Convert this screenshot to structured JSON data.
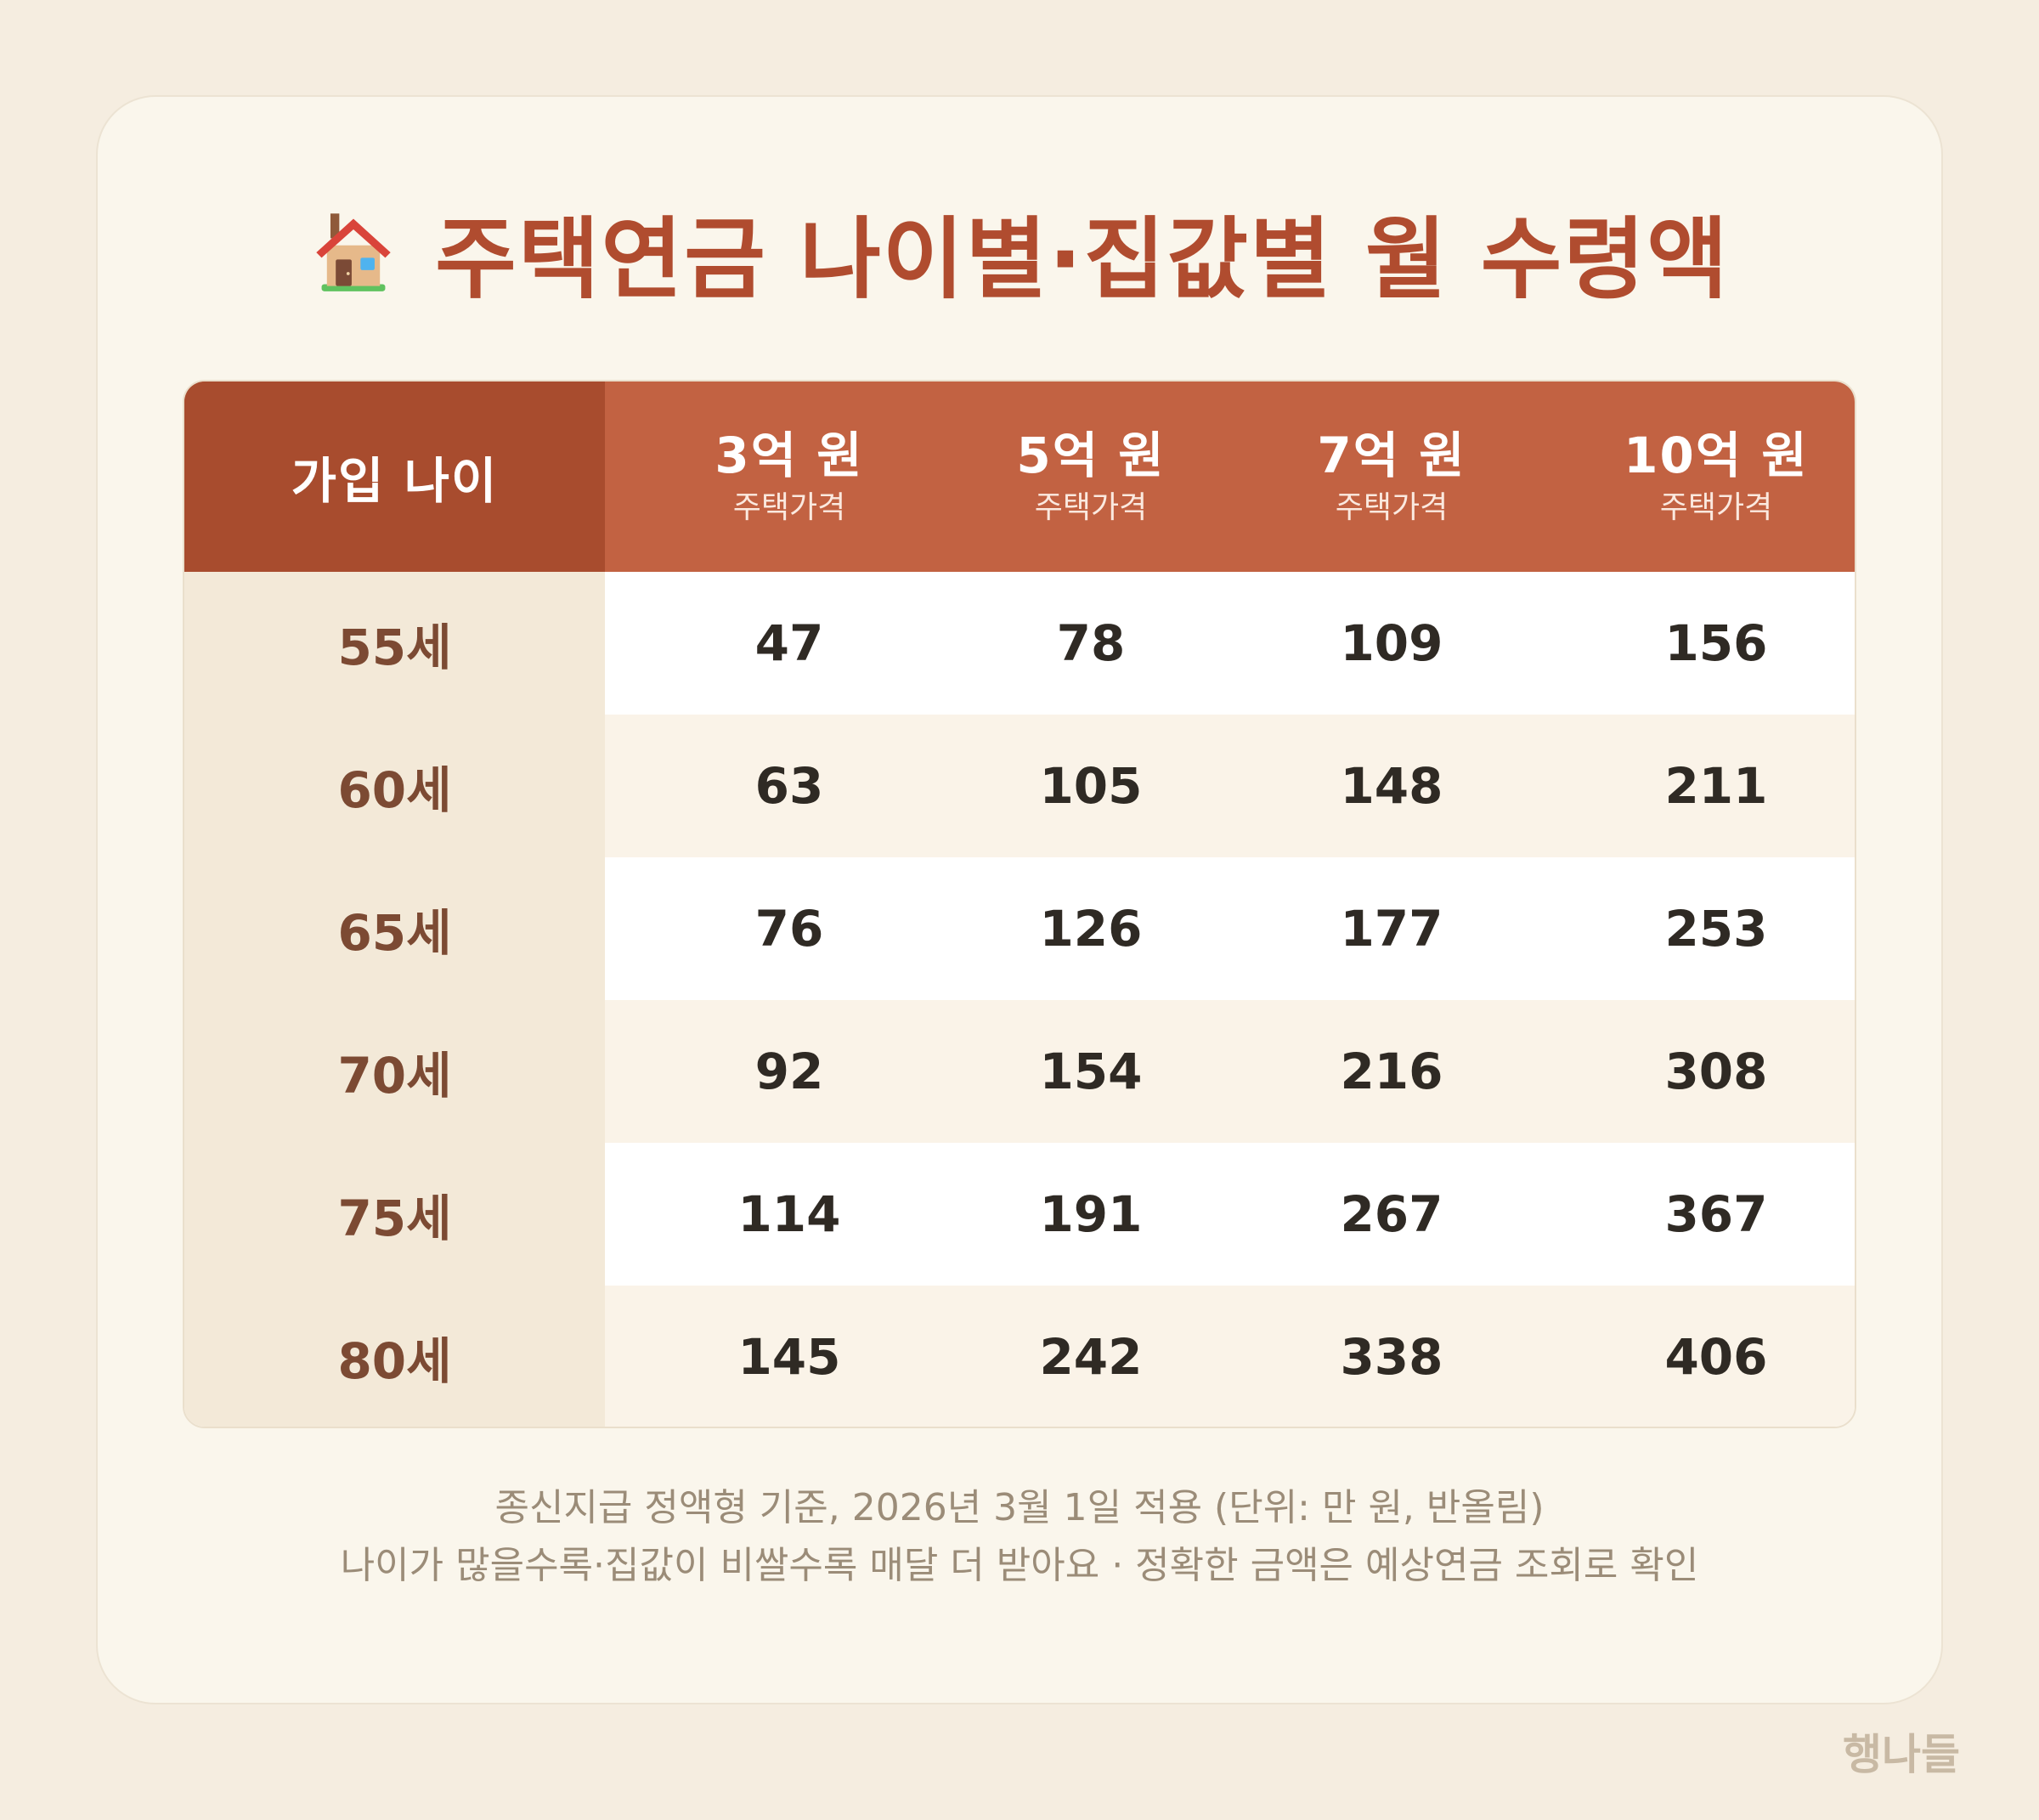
{
  "title": {
    "icon": "house-icon",
    "text": "주택연금 나이별·집값별 월 수령액"
  },
  "table": {
    "age_header": "가입 나이",
    "columns": [
      {
        "label": "3억 원",
        "sub": "주택가격"
      },
      {
        "label": "5억 원",
        "sub": "주택가격"
      },
      {
        "label": "7억 원",
        "sub": "주택가격"
      },
      {
        "label": "10억 원",
        "sub": "주택가격"
      }
    ],
    "rows": [
      {
        "age": "55세",
        "values": [
          "47",
          "78",
          "109",
          "156"
        ]
      },
      {
        "age": "60세",
        "values": [
          "63",
          "105",
          "148",
          "211"
        ]
      },
      {
        "age": "65세",
        "values": [
          "76",
          "126",
          "177",
          "253"
        ]
      },
      {
        "age": "70세",
        "values": [
          "92",
          "154",
          "216",
          "308"
        ]
      },
      {
        "age": "75세",
        "values": [
          "114",
          "191",
          "267",
          "367"
        ]
      },
      {
        "age": "80세",
        "values": [
          "145",
          "242",
          "338",
          "406"
        ]
      }
    ]
  },
  "notes": {
    "line1": "종신지급 정액형 기준, 2026년 3월 1일 적용 (단위: 만 원, 반올림)",
    "line2": "나이가 많을수록·집값이 비쌀수록 매달 더 받아요 · 정확한 금액은 예상연금 조회로 확인"
  },
  "brand": "행나들",
  "colors": {
    "background": "#f5ede0",
    "card": "#faf6ec",
    "title": "#b04c2f",
    "header": "#c26242",
    "header_age": "#a84c2e",
    "age_column": "#f3e9d8",
    "age_text": "#7c4a33"
  }
}
